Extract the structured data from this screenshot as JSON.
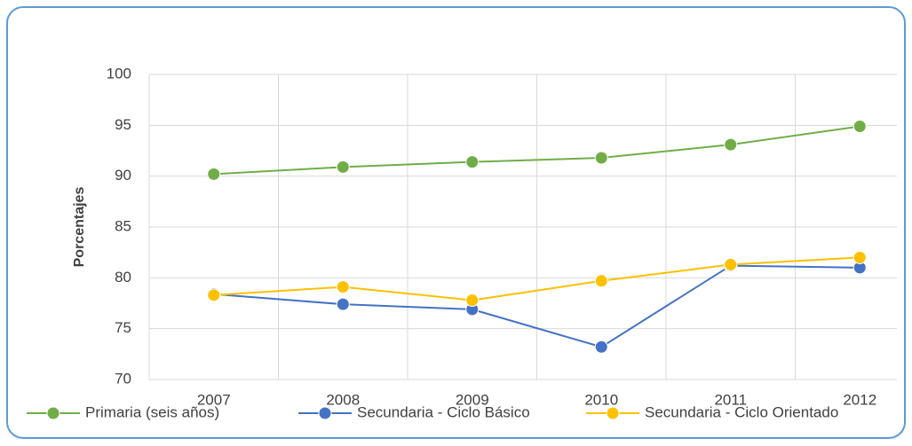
{
  "chart_data": {
    "type": "line",
    "y_label": "Porcentajes",
    "categories": [
      "2007",
      "2008",
      "2009",
      "2010",
      "2011",
      "2012"
    ],
    "series": [
      {
        "name": "Primaria (seis años)",
        "color": "#70ad47",
        "values": [
          90.2,
          90.9,
          91.4,
          91.8,
          93.1,
          94.9
        ]
      },
      {
        "name": "Secundaria - Ciclo Básico",
        "color": "#4472c4",
        "values": [
          78.4,
          77.4,
          76.9,
          73.2,
          81.2,
          81.0
        ]
      },
      {
        "name": "Secundaria - Ciclo Orientado",
        "color": "#ffc000",
        "values": [
          78.3,
          79.1,
          77.8,
          79.7,
          81.3,
          82.0
        ]
      }
    ],
    "ylim": [
      70,
      100
    ],
    "yticks": [
      70,
      75,
      80,
      85,
      90,
      95,
      100
    ],
    "grid": true,
    "legend": "bottom"
  }
}
